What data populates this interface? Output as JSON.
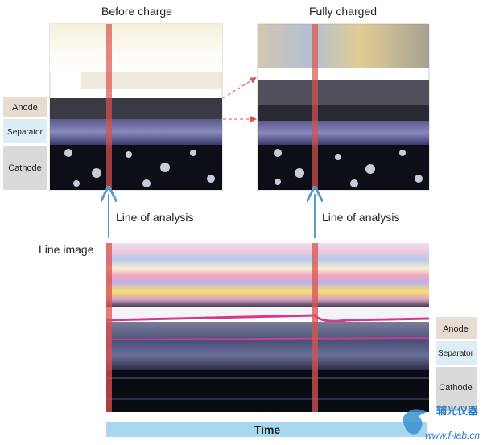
{
  "panels": [
    {
      "title": "Before charge"
    },
    {
      "title": "Fully charged"
    }
  ],
  "left_labels": [
    "Anode",
    "Separator",
    "Cathode"
  ],
  "analysis_labels": [
    "Line of analysis",
    "Line of analysis"
  ],
  "line_image": {
    "title": "Line image",
    "labels": [
      "Anode",
      "Separator",
      "Cathode"
    ],
    "axis": "Time"
  },
  "watermark": {
    "name": "辅光仪器",
    "url": "www.f-lab.cn"
  }
}
